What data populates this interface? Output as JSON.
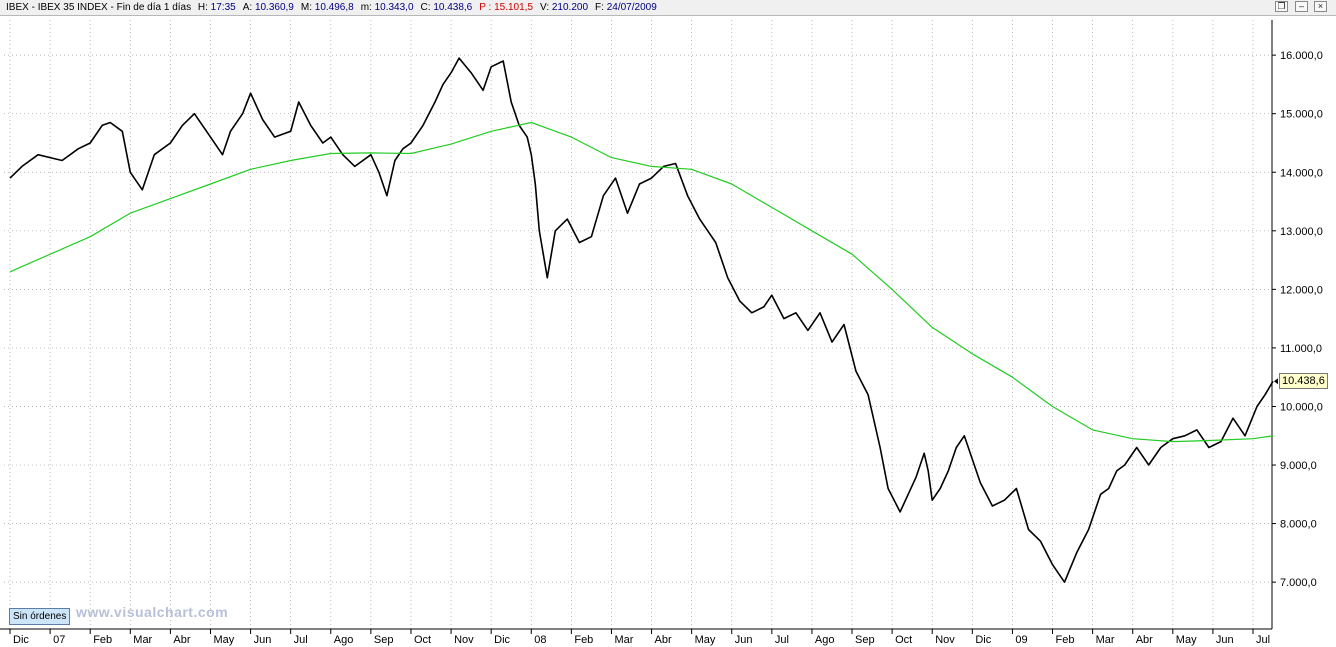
{
  "header": {
    "symbol": "IBEX",
    "name": "IBEX 35 INDEX",
    "period": "Fin de día 1 días",
    "fields": [
      {
        "label": "H:",
        "value": "17:35",
        "color": "#000080"
      },
      {
        "label": "A:",
        "value": "10.360,9",
        "color": "#000080"
      },
      {
        "label": "M:",
        "value": "10.496,8",
        "color": "#000080"
      },
      {
        "label": "m:",
        "value": "10.343,0",
        "color": "#000080"
      },
      {
        "label": "C:",
        "value": "10.438,6",
        "color": "#000080"
      },
      {
        "label": "P :",
        "value": "15.101,5",
        "color": "#d00000"
      },
      {
        "label": "V:",
        "value": "210.200",
        "color": "#000080"
      },
      {
        "label": "F:",
        "value": "24/07/2009",
        "color": "#000080"
      }
    ]
  },
  "window_controls": {
    "restore": "❐",
    "minimize": "‒",
    "close": "×"
  },
  "footer": {
    "orders_button": "Sin órdenes",
    "watermark": "www.visualchart.com"
  },
  "last_price_label": "10.438,6",
  "colors": {
    "price": "#000000",
    "moving_average": "#22cc22",
    "grid": "#a0a0a0"
  },
  "chart_data": {
    "type": "line",
    "style": "ohlc daily bars with moving average",
    "ylim": [
      6200,
      16600
    ],
    "y_ticks": [
      {
        "value": 7000,
        "label": "7.000,0"
      },
      {
        "value": 8000,
        "label": "8.000,0"
      },
      {
        "value": 9000,
        "label": "9.000,0"
      },
      {
        "value": 10000,
        "label": "10.000,0"
      },
      {
        "value": 11000,
        "label": "11.000,0"
      },
      {
        "value": 12000,
        "label": "12.000,0"
      },
      {
        "value": 13000,
        "label": "13.000,0"
      },
      {
        "value": 14000,
        "label": "14.000,0"
      },
      {
        "value": 15000,
        "label": "15.000,0"
      },
      {
        "value": 16000,
        "label": "16.000,0"
      }
    ],
    "x_ticks": [
      "Dic",
      "07",
      "Feb",
      "Mar",
      "Abr",
      "May",
      "Jun",
      "Jul",
      "Ago",
      "Sep",
      "Oct",
      "Nov",
      "Dic",
      "08",
      "Feb",
      "Mar",
      "Abr",
      "May",
      "Jun",
      "Jul",
      "Ago",
      "Sep",
      "Oct",
      "Nov",
      "Dic",
      "09",
      "Feb",
      "Mar",
      "Abr",
      "May",
      "Jun",
      "Jul"
    ],
    "grid": true,
    "series": [
      {
        "key": "price",
        "months": [
          0,
          0.3,
          0.7,
          1.0,
          1.3,
          1.7,
          2.0,
          2.3,
          2.5,
          2.8,
          3.0,
          3.3,
          3.6,
          4.0,
          4.3,
          4.6,
          5.0,
          5.3,
          5.5,
          5.8,
          6.0,
          6.3,
          6.6,
          7.0,
          7.2,
          7.5,
          7.8,
          8.0,
          8.3,
          8.6,
          9.0,
          9.2,
          9.4,
          9.6,
          9.8,
          10.0,
          10.3,
          10.6,
          10.8,
          11.0,
          11.2,
          11.5,
          11.8,
          12.0,
          12.3,
          12.5,
          12.7,
          12.9,
          13.0,
          13.1,
          13.2,
          13.4,
          13.6,
          13.9,
          14.2,
          14.5,
          14.8,
          15.1,
          15.4,
          15.7,
          16.0,
          16.3,
          16.6,
          16.9,
          17.2,
          17.4,
          17.6,
          17.9,
          18.2,
          18.5,
          18.8,
          19.0,
          19.3,
          19.6,
          19.9,
          20.2,
          20.5,
          20.8,
          21.1,
          21.4,
          21.7,
          21.9,
          22.2,
          22.4,
          22.6,
          22.8,
          22.9,
          23.0,
          23.2,
          23.4,
          23.6,
          23.8,
          24.0,
          24.2,
          24.5,
          24.8,
          25.1,
          25.4,
          25.7,
          26.0,
          26.3,
          26.6,
          26.9,
          27.2,
          27.4,
          27.6,
          27.8,
          28.1,
          28.4,
          28.7,
          29.0,
          29.3,
          29.6,
          29.9,
          30.2,
          30.5,
          30.8,
          31.1,
          31.3,
          31.5
        ],
        "values": [
          13900,
          14100,
          14300,
          14250,
          14200,
          14400,
          14500,
          14800,
          14850,
          14700,
          14000,
          13700,
          14300,
          14500,
          14800,
          15000,
          14600,
          14300,
          14700,
          15000,
          15350,
          14900,
          14600,
          14700,
          15200,
          14800,
          14500,
          14600,
          14300,
          14100,
          14300,
          14000,
          13600,
          14200,
          14400,
          14500,
          14800,
          15200,
          15500,
          15700,
          15950,
          15700,
          15400,
          15800,
          15900,
          15200,
          14800,
          14600,
          14300,
          13800,
          13000,
          12200,
          13000,
          13200,
          12800,
          12900,
          13600,
          13900,
          13300,
          13800,
          13900,
          14100,
          14150,
          13600,
          13200,
          13000,
          12800,
          12200,
          11800,
          11600,
          11700,
          11900,
          11500,
          11600,
          11300,
          11600,
          11100,
          11400,
          10600,
          10200,
          9300,
          8600,
          8200,
          8500,
          8800,
          9200,
          8900,
          8400,
          8600,
          8900,
          9300,
          9500,
          9100,
          8700,
          8300,
          8400,
          8600,
          7900,
          7700,
          7300,
          7000,
          7500,
          7900,
          8500,
          8600,
          8900,
          9000,
          9300,
          9000,
          9300,
          9450,
          9500,
          9600,
          9300,
          9400,
          9800,
          9500,
          10000,
          10200,
          10430
        ]
      },
      {
        "key": "moving_average",
        "months": [
          0,
          2,
          3,
          4,
          5,
          6,
          7,
          8,
          9,
          10,
          11,
          12,
          13,
          14,
          15,
          16,
          17,
          18,
          19,
          20,
          21,
          22,
          23,
          24,
          25,
          26,
          27,
          28,
          29,
          30,
          31,
          31.5
        ],
        "values": [
          12300,
          12900,
          13300,
          13550,
          13800,
          14050,
          14200,
          14320,
          14330,
          14320,
          14480,
          14700,
          14850,
          14600,
          14250,
          14100,
          14050,
          13800,
          13400,
          13000,
          12600,
          12000,
          11350,
          10900,
          10500,
          10000,
          9600,
          9450,
          9400,
          9420,
          9450,
          9500
        ]
      }
    ]
  }
}
